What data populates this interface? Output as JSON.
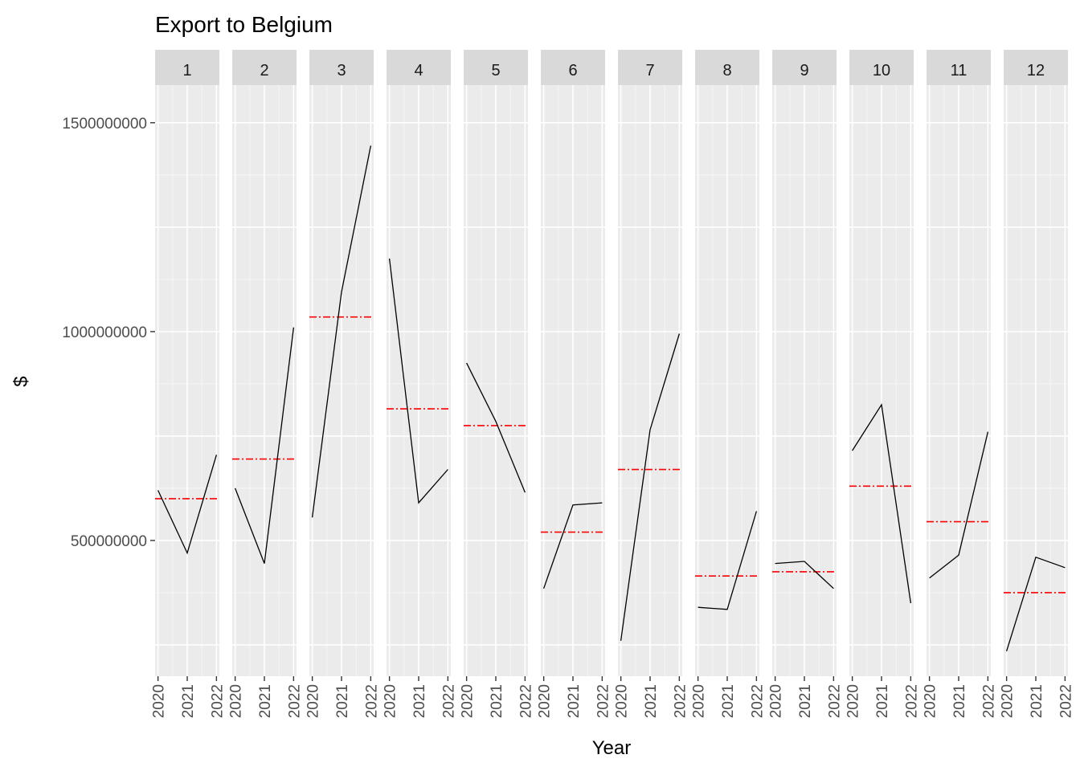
{
  "chart_data": {
    "type": "line",
    "title": "Export to Belgium",
    "xlabel": "Year",
    "ylabel": "$",
    "x_ticks": [
      "2020",
      "2021",
      "2022"
    ],
    "y_ticks": [
      500000000,
      1000000000,
      1500000000
    ],
    "y_tick_labels": [
      "500000000",
      "1000000000",
      "1500000000"
    ],
    "ylim": [
      175000000,
      1590000000
    ],
    "facet_variable": "month",
    "grid": true,
    "colors": {
      "series_line": "#000000",
      "mean_line": "#ff0000",
      "panel_bg": "#ebebeb",
      "strip_bg": "#d9d9d9",
      "grid": "#ffffff"
    },
    "facets": [
      {
        "label": "1",
        "values": [
          620000000,
          470000000,
          705000000
        ],
        "mean": 600000000
      },
      {
        "label": "2",
        "values": [
          625000000,
          445000000,
          1010000000
        ],
        "mean": 695000000
      },
      {
        "label": "3",
        "values": [
          555000000,
          1095000000,
          1445000000
        ],
        "mean": 1035000000
      },
      {
        "label": "4",
        "values": [
          1175000000,
          590000000,
          670000000
        ],
        "mean": 815000000
      },
      {
        "label": "5",
        "values": [
          925000000,
          785000000,
          615000000
        ],
        "mean": 775000000
      },
      {
        "label": "6",
        "values": [
          385000000,
          585000000,
          590000000
        ],
        "mean": 520000000
      },
      {
        "label": "7",
        "values": [
          260000000,
          765000000,
          995000000
        ],
        "mean": 670000000
      },
      {
        "label": "8",
        "values": [
          340000000,
          335000000,
          570000000
        ],
        "mean": 415000000
      },
      {
        "label": "9",
        "values": [
          445000000,
          450000000,
          385000000
        ],
        "mean": 425000000
      },
      {
        "label": "10",
        "values": [
          715000000,
          825000000,
          350000000
        ],
        "mean": 630000000
      },
      {
        "label": "11",
        "values": [
          410000000,
          465000000,
          760000000
        ],
        "mean": 545000000
      },
      {
        "label": "12",
        "values": [
          235000000,
          460000000,
          435000000
        ],
        "mean": 375000000
      }
    ]
  }
}
